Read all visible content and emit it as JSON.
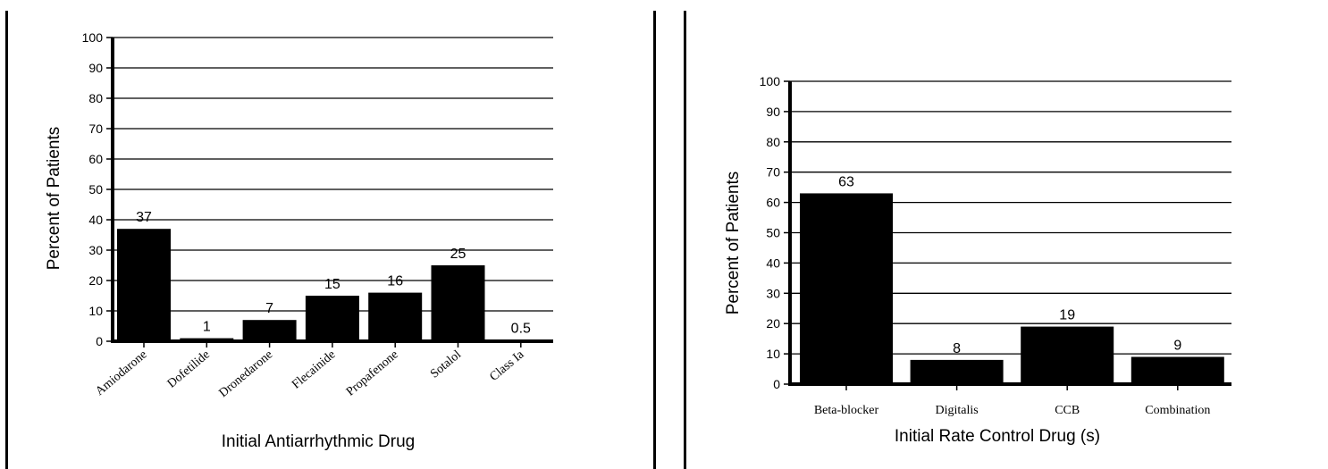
{
  "chart_data": [
    {
      "type": "bar",
      "title": "",
      "xlabel": "Initial Antiarrhythmic Drug",
      "ylabel": "Percent of Patients",
      "ylim": [
        0,
        100
      ],
      "yticks": [
        0,
        10,
        20,
        30,
        40,
        50,
        60,
        70,
        80,
        90,
        100
      ],
      "grid": true,
      "categories": [
        "Amiodarone",
        "Dofetilide",
        "Dronedarone",
        "Flecainide",
        "Propafenone",
        "Sotalol",
        "Class Ia"
      ],
      "values": [
        37,
        1,
        7,
        15,
        16,
        25,
        0.5
      ],
      "data_labels": [
        "37",
        "1",
        "7",
        "15",
        "16",
        "25",
        "0.5"
      ],
      "bar_color": "#000000"
    },
    {
      "type": "bar",
      "title": "",
      "xlabel": "Initial Rate Control Drug (s)",
      "ylabel": "Percent of Patients",
      "ylim": [
        0,
        100
      ],
      "yticks": [
        0,
        10,
        20,
        30,
        40,
        50,
        60,
        70,
        80,
        90,
        100
      ],
      "grid": true,
      "categories": [
        "Beta-blocker",
        "Digitalis",
        "CCB",
        "Combination"
      ],
      "values": [
        63,
        8,
        19,
        9
      ],
      "data_labels": [
        "63",
        "8",
        "19",
        "9"
      ],
      "bar_color": "#000000"
    }
  ]
}
